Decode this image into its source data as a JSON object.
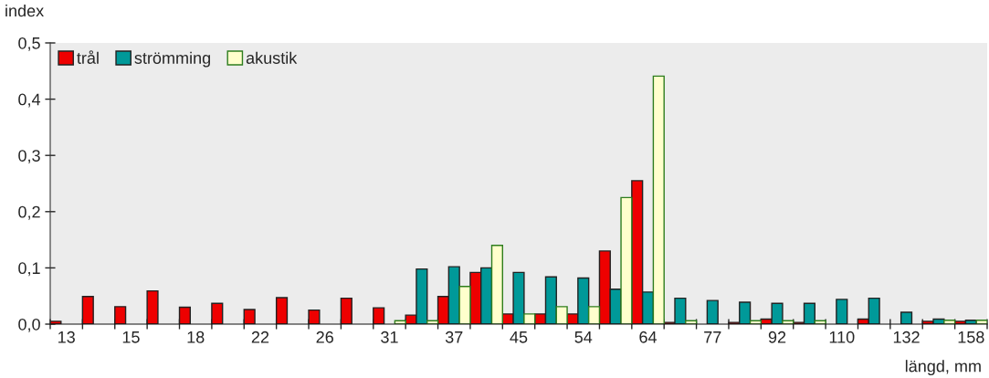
{
  "chart_data": {
    "type": "bar",
    "xlabel": "längd, mm",
    "ylabel": "index",
    "categories": [
      "13",
      null,
      "15",
      null,
      "18",
      null,
      "22",
      null,
      "26",
      null,
      "31",
      null,
      "37",
      null,
      "45",
      null,
      "54",
      null,
      "64",
      null,
      "77",
      null,
      "92",
      null,
      "110",
      null,
      "132",
      null,
      "158"
    ],
    "series": [
      {
        "name": "trål",
        "color": "#ee0000",
        "values": [
          0.005,
          0.049,
          0.031,
          0.059,
          0.03,
          0.037,
          0.026,
          0.047,
          0.025,
          0.046,
          0.029,
          0.016,
          0.049,
          0.092,
          0.018,
          0.018,
          0.018,
          0.13,
          0.255,
          0.003,
          null,
          0.003,
          0.009,
          0.003,
          null,
          0.009,
          null,
          0.005,
          0.005
        ]
      },
      {
        "name": "strömming",
        "color": "#009999",
        "values": [
          null,
          null,
          null,
          null,
          null,
          null,
          null,
          null,
          null,
          null,
          null,
          0.098,
          0.102,
          0.1,
          0.092,
          0.084,
          0.082,
          0.062,
          0.057,
          0.046,
          0.042,
          0.039,
          0.037,
          0.037,
          0.044,
          0.046,
          0.021,
          0.009,
          0.007
        ]
      },
      {
        "name": "akustik",
        "color": "#ffffcc",
        "values": [
          null,
          null,
          null,
          null,
          null,
          null,
          null,
          null,
          null,
          null,
          0.006,
          0.006,
          0.067,
          0.14,
          0.018,
          0.031,
          0.031,
          0.225,
          0.441,
          0.006,
          null,
          0.006,
          0.006,
          0.006,
          null,
          null,
          null,
          0.007,
          0.007
        ]
      }
    ],
    "ylim": [
      0,
      0.5
    ],
    "yticks": [
      {
        "value": 0,
        "label": "0,0"
      },
      {
        "value": 0.1,
        "label": "0,1"
      },
      {
        "value": 0.2,
        "label": "0,2"
      },
      {
        "value": 0.3,
        "label": "0,3"
      },
      {
        "value": 0.4,
        "label": "0,4"
      },
      {
        "value": 0.5,
        "label": "0,5"
      }
    ],
    "grid": false,
    "legend": "top left"
  }
}
